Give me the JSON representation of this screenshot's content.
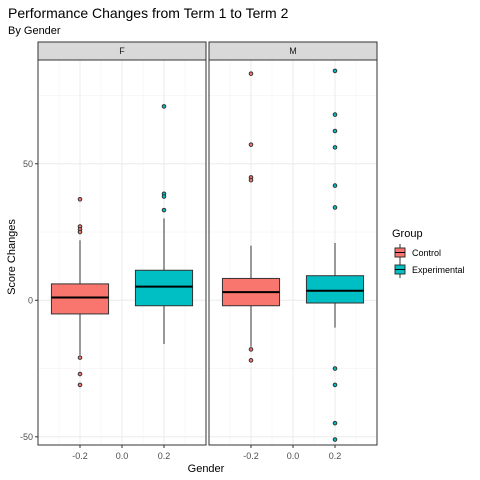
{
  "chart_data": {
    "type": "boxplot",
    "title": "Performance Changes from Term 1 to Term 2",
    "subtitle": "By Gender",
    "xlabel": "Gender",
    "ylabel": "Score Changes",
    "xlim": [
      -0.4,
      0.4
    ],
    "ylim": [
      -53,
      88
    ],
    "x_ticks": [
      -0.2,
      0.0,
      0.2
    ],
    "x_tick_labels": [
      "-0.2",
      "0.0",
      "0.2"
    ],
    "y_ticks": [
      -50,
      0,
      50
    ],
    "y_tick_labels": [
      "-50",
      "0",
      "50"
    ],
    "grid": true,
    "legend": {
      "title": "Group",
      "placement": "right",
      "items": [
        {
          "label": "Control",
          "color": "#F8766D"
        },
        {
          "label": "Experimental",
          "color": "#00BFC4"
        }
      ]
    },
    "panels": [
      {
        "strip_label": "F",
        "boxes": [
          {
            "group": "Control",
            "x": -0.2,
            "color": "#F8766D",
            "whisker_low": -20,
            "q1": -5,
            "median": 1,
            "q3": 6,
            "whisker_high": 22,
            "outliers": [
              37,
              27,
              26,
              25,
              -21,
              -27,
              -31
            ]
          },
          {
            "group": "Experimental",
            "x": 0.2,
            "color": "#00BFC4",
            "whisker_low": -16,
            "q1": -2,
            "median": 5,
            "q3": 11,
            "whisker_high": 30,
            "outliers": [
              71,
              39,
              38,
              33
            ]
          }
        ]
      },
      {
        "strip_label": "M",
        "boxes": [
          {
            "group": "Control",
            "x": -0.2,
            "color": "#F8766D",
            "whisker_low": -17,
            "q1": -2,
            "median": 3,
            "q3": 8,
            "whisker_high": 20,
            "outliers": [
              83,
              57,
              45,
              44,
              -18,
              -22
            ]
          },
          {
            "group": "Experimental",
            "x": 0.2,
            "color": "#00BFC4",
            "whisker_low": -10,
            "q1": -1,
            "median": 3.5,
            "q3": 9,
            "whisker_high": 21,
            "outliers": [
              84,
              68,
              62,
              56,
              42,
              34,
              -25,
              -31,
              -45,
              -51
            ]
          }
        ]
      }
    ]
  }
}
